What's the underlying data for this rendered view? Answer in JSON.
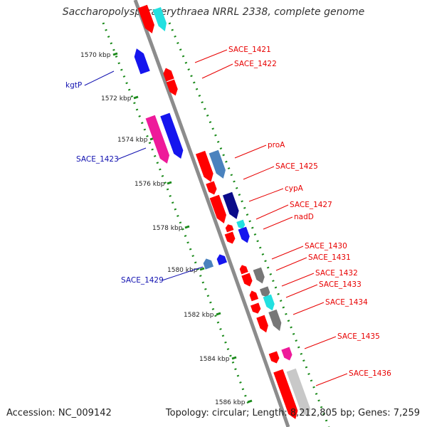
{
  "title": "Saccharopolyspora erythraea NRRL 2338, complete genome",
  "footer": {
    "accession": "Accession: NC_009142",
    "summary": "Topology: circular; Length: 8,212,805 bp; Genes: 7,259"
  },
  "colors": {
    "red": "#ff0000",
    "cyan": "#22e0e0",
    "blue": "#1515ee",
    "steelblue": "#4a82be",
    "navy": "#0b0b8a",
    "magenta": "#ee1a9a",
    "gray": "#777777",
    "lightgray": "#c8c8c8",
    "label_red": "#e80000",
    "label_blue": "#1010b0",
    "scale_green": "#1a8a1a",
    "backbone": "#8c8c8c"
  },
  "scale_labels": [
    "1570 kbp",
    "1572 kbp",
    "1574 kbp",
    "1576 kbp",
    "1578 kbp",
    "1580 kbp",
    "1582 kbp",
    "1584 kbp",
    "1586 kbp"
  ],
  "gene_labels": [
    {
      "text": "SACE_1421",
      "side": "right"
    },
    {
      "text": "SACE_1422",
      "side": "right"
    },
    {
      "text": "kgtP",
      "side": "left"
    },
    {
      "text": "proA",
      "side": "right"
    },
    {
      "text": "SACE_1423",
      "side": "left"
    },
    {
      "text": "SACE_1425",
      "side": "right"
    },
    {
      "text": "cypA",
      "side": "right"
    },
    {
      "text": "SACE_1427",
      "side": "right"
    },
    {
      "text": "nadD",
      "side": "right"
    },
    {
      "text": "SACE_1430",
      "side": "right"
    },
    {
      "text": "SACE_1431",
      "side": "right"
    },
    {
      "text": "SACE_1429",
      "side": "left"
    },
    {
      "text": "SACE_1432",
      "side": "right"
    },
    {
      "text": "SACE_1433",
      "side": "right"
    },
    {
      "text": "SACE_1434",
      "side": "right"
    },
    {
      "text": "SACE_1435",
      "side": "right"
    },
    {
      "text": "SACE_1436",
      "side": "right"
    }
  ]
}
